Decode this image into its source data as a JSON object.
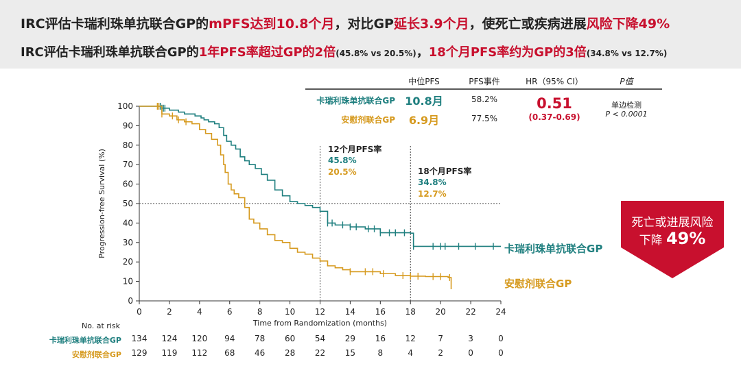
{
  "header": {
    "line1": [
      {
        "text": "IRC评估卡瑞利珠单抗联合GP的",
        "style": "normal"
      },
      {
        "text": "mPFS达到10.8个月",
        "style": "red"
      },
      {
        "text": "，对比GP",
        "style": "normal"
      },
      {
        "text": "延长3.9个月",
        "style": "red"
      },
      {
        "text": "，使死亡或疾病进展",
        "style": "normal"
      },
      {
        "text": "风险下降49%",
        "style": "red"
      }
    ],
    "line2": [
      {
        "text": "IRC评估卡瑞利珠单抗联合GP的",
        "style": "normal"
      },
      {
        "text": "1年PFS率超过GP的2倍",
        "style": "red"
      },
      {
        "text": "(45.8% vs 20.5%)",
        "style": "small"
      },
      {
        "text": "，",
        "style": "normal"
      },
      {
        "text": "18个月PFS率约为GP的3倍",
        "style": "red"
      },
      {
        "text": "(34.8% vs 12.7%)",
        "style": "small"
      }
    ]
  },
  "stats_table": {
    "headers": {
      "median": "中位PFS",
      "events": "PFS事件",
      "hr": "HR（95% CI）",
      "p": "P值"
    },
    "arm1": {
      "name": "卡瑞利珠单抗联合GP",
      "median": "10.8月",
      "events": "58.2%"
    },
    "arm2": {
      "name": "安慰剂联合GP",
      "median": "6.9月",
      "events": "77.5%"
    },
    "hr_value": "0.51",
    "hr_ci": "(0.37-0.69)",
    "p_label": "单边检测",
    "p_value": "P < 0.0001"
  },
  "annotations": {
    "m12": {
      "title": "12个月PFS率",
      "arm1": "45.8%",
      "arm2": "20.5%"
    },
    "m18": {
      "title": "18个月PFS率",
      "arm1": "34.8%",
      "arm2": "12.7%"
    }
  },
  "curve_labels": {
    "arm1": "卡瑞利珠单抗联合GP",
    "arm2": "安慰剂联合GP"
  },
  "callout": {
    "line1": "死亡或进展风险",
    "line2_prefix": "下降",
    "line2_value": "49%"
  },
  "risk_table": {
    "title": "No. at risk",
    "arm1_name": "卡瑞利珠单抗联合GP",
    "arm2_name": "安慰剂联合GP",
    "arm1": [
      134,
      124,
      120,
      94,
      78,
      60,
      54,
      29,
      16,
      12,
      7,
      3,
      0
    ],
    "arm2": [
      129,
      119,
      112,
      68,
      46,
      28,
      22,
      15,
      8,
      4,
      2,
      0,
      0
    ]
  },
  "colors": {
    "arm1": "#1f7f7f",
    "arm2": "#d69a1f",
    "accent": "#c8102e"
  },
  "chart_data": {
    "type": "line",
    "xlabel": "Time from Randomization (months)",
    "ylabel": "Progression-free Survival (%)",
    "xlim": [
      0,
      24
    ],
    "ylim": [
      0,
      100
    ],
    "xticks": [
      0,
      2,
      4,
      6,
      8,
      10,
      12,
      14,
      16,
      18,
      20,
      22,
      24
    ],
    "yticks": [
      0,
      10,
      20,
      30,
      40,
      50,
      60,
      70,
      80,
      90,
      100
    ],
    "reference_lines": {
      "y": 50,
      "x": [
        12,
        18
      ]
    },
    "series": [
      {
        "name": "卡瑞利珠单抗联合GP",
        "color": "#1f7f7f",
        "x": [
          0,
          1.3,
          1.5,
          2.0,
          2.6,
          3.0,
          3.7,
          4.1,
          4.3,
          4.6,
          5.0,
          5.3,
          5.6,
          5.8,
          6.1,
          6.4,
          6.7,
          7.0,
          7.3,
          7.7,
          8.1,
          8.5,
          9.0,
          9.5,
          10.0,
          10.5,
          11.0,
          11.5,
          12.0,
          12.5,
          13.0,
          14.0,
          15.0,
          16.0,
          17.0,
          18.0,
          18.2,
          20.0,
          24.0
        ],
        "y": [
          100,
          100,
          99,
          98,
          97,
          96,
          95,
          94,
          93,
          92,
          91,
          89,
          85,
          82,
          80,
          78,
          74,
          72,
          70,
          68,
          65,
          62,
          57,
          54,
          51,
          50,
          49,
          48,
          46,
          40,
          39,
          38,
          37,
          35,
          35,
          34.8,
          28,
          28,
          28
        ],
        "censor_x": [
          1.3,
          1.4,
          1.5,
          1.6,
          1.7,
          12.5,
          12.8,
          13.5,
          14.0,
          14.4,
          15.2,
          15.6,
          16.0,
          16.6,
          17.0,
          17.6,
          18.2,
          19.5,
          20.0,
          20.3,
          21.2,
          22.3,
          23.5
        ]
      },
      {
        "name": "安慰剂联合GP",
        "color": "#d69a1f",
        "x": [
          0,
          1.2,
          1.5,
          2.0,
          2.5,
          3.0,
          3.5,
          4.0,
          4.4,
          4.8,
          5.2,
          5.4,
          5.6,
          5.7,
          5.9,
          6.1,
          6.3,
          6.6,
          7.0,
          7.3,
          7.6,
          8.0,
          8.5,
          9.0,
          9.5,
          10.0,
          10.5,
          11.0,
          11.5,
          12.0,
          12.5,
          13.0,
          13.5,
          14.0,
          15.0,
          16.0,
          17.0,
          18.0,
          19.0,
          20.0,
          20.5,
          20.7
        ],
        "y": [
          100,
          100,
          96,
          95,
          93,
          92,
          91,
          88,
          86,
          83,
          80,
          75,
          70,
          66,
          60,
          57,
          55,
          53,
          48,
          42,
          40,
          37,
          34,
          31,
          30,
          27,
          25,
          24,
          22,
          20.5,
          18,
          17,
          16,
          15,
          15,
          14,
          13,
          12.7,
          12.5,
          12.5,
          12,
          6
        ],
        "censor_x": [
          1.2,
          1.3,
          1.5,
          2.2,
          2.6,
          3.1,
          14.0,
          15.0,
          15.5,
          16.2,
          17.5,
          18.0,
          18.5,
          19.5,
          20.0,
          20.6
        ]
      }
    ]
  }
}
